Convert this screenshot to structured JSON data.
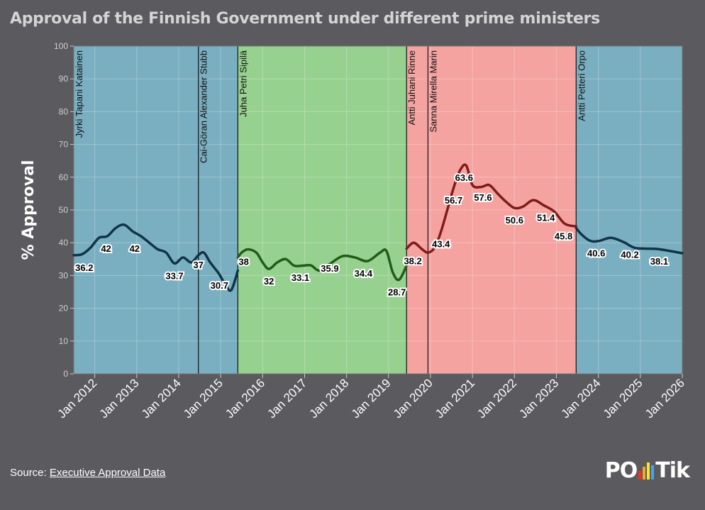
{
  "title": "Approval of the Finnish Government under different prime ministers",
  "footer": {
    "source_label": "Source:",
    "source_link": "Executive Approval Data"
  },
  "logo": {
    "prefix": "PO",
    "suffix": "Tik",
    "bar_colors": [
      "#e8322f",
      "#f5a623",
      "#f8e71c",
      "#3fa9f5"
    ]
  },
  "chart_data": {
    "type": "line",
    "ylabel": "% Approval",
    "ylim": [
      0,
      100
    ],
    "yticks": [
      0,
      10,
      20,
      30,
      40,
      50,
      60,
      70,
      80,
      90,
      100
    ],
    "xlim": [
      2011.5,
      2026
    ],
    "xticks": [
      {
        "v": 2012,
        "label": "Jan 2012"
      },
      {
        "v": 2013,
        "label": "Jan 2013"
      },
      {
        "v": 2014,
        "label": "Jan 2014"
      },
      {
        "v": 2015,
        "label": "Jan 2015"
      },
      {
        "v": 2016,
        "label": "Jan 2016"
      },
      {
        "v": 2017,
        "label": "Jan 2017"
      },
      {
        "v": 2018,
        "label": "Jan 2018"
      },
      {
        "v": 2019,
        "label": "Jan 2019"
      },
      {
        "v": 2020,
        "label": "Jan 2020"
      },
      {
        "v": 2021,
        "label": "Jan 2021"
      },
      {
        "v": 2022,
        "label": "Jan 2022"
      },
      {
        "v": 2023,
        "label": "Jan 2023"
      },
      {
        "v": 2024,
        "label": "Jan 2024"
      },
      {
        "v": 2025,
        "label": "Jan 2025"
      },
      {
        "v": 2026,
        "label": "Jan 2026"
      }
    ],
    "periods": [
      {
        "name": "Jyrki Tapani Katainen",
        "start": 2011.5,
        "end": 2014.47,
        "color": "#7aafc1",
        "line": "#10344a"
      },
      {
        "name": "Cai-Göran Alexander Stubb",
        "start": 2014.47,
        "end": 2015.41,
        "color": "#7aafc1",
        "line": "#10344a"
      },
      {
        "name": "Juha Petri Sipilä",
        "start": 2015.41,
        "end": 2019.43,
        "color": "#97d18f",
        "line": "#235c1a"
      },
      {
        "name": "Antti Juhani Rinne",
        "start": 2019.43,
        "end": 2019.94,
        "color": "#f5a3a1",
        "line": "#7e1c19"
      },
      {
        "name": "Sanna Mirella Marin",
        "start": 2019.94,
        "end": 2023.47,
        "color": "#f5a3a1",
        "line": "#7e1c19"
      },
      {
        "name": "Antti Petteri Orpo",
        "start": 2023.47,
        "end": 2026,
        "color": "#7aafc1",
        "line": "#10344a"
      }
    ],
    "series": [
      {
        "name": "Katainen–Stubb",
        "color": "#10344a",
        "x": [
          2011.5,
          2011.7,
          2011.9,
          2012.1,
          2012.3,
          2012.5,
          2012.7,
          2012.9,
          2013.1,
          2013.3,
          2013.5,
          2013.7,
          2013.9,
          2014.1,
          2014.3,
          2014.47,
          2014.6,
          2014.75,
          2014.95,
          2015.1,
          2015.25,
          2015.41
        ],
        "y": [
          36.2,
          36.5,
          38.5,
          41.5,
          42,
          44.5,
          45.5,
          43.5,
          42,
          40,
          38,
          37,
          33.7,
          35.5,
          34,
          36.2,
          37,
          34,
          30.7,
          27.5,
          25.5,
          31.5
        ]
      },
      {
        "name": "Sipilä",
        "color": "#235c1a",
        "x": [
          2015.41,
          2015.5,
          2015.65,
          2015.85,
          2016.0,
          2016.15,
          2016.35,
          2016.55,
          2016.75,
          2016.95,
          2017.15,
          2017.35,
          2017.6,
          2017.9,
          2018.2,
          2018.5,
          2018.8,
          2018.95,
          2019.1,
          2019.25,
          2019.43
        ],
        "y": [
          35.5,
          37,
          38,
          37,
          34,
          32,
          34,
          35,
          33,
          33,
          33.1,
          31.5,
          33.5,
          35.9,
          35.5,
          34.4,
          37,
          37.5,
          31,
          28.7,
          33
        ]
      },
      {
        "name": "Rinne–Marin",
        "color": "#7e1c19",
        "x": [
          2019.43,
          2019.6,
          2019.8,
          2019.94,
          2020.1,
          2020.25,
          2020.4,
          2020.55,
          2020.7,
          2020.85,
          2021.0,
          2021.2,
          2021.4,
          2021.6,
          2021.8,
          2022.0,
          2022.2,
          2022.45,
          2022.7,
          2022.95,
          2023.2,
          2023.47
        ],
        "y": [
          38.2,
          40,
          38,
          37,
          38.5,
          43.4,
          50,
          56.7,
          62,
          63.6,
          57.6,
          57,
          57.6,
          55,
          52.5,
          50.6,
          51,
          53,
          51.4,
          49.5,
          45.8,
          45
        ]
      },
      {
        "name": "Orpo",
        "color": "#10344a",
        "x": [
          2023.47,
          2023.6,
          2023.8,
          2024.0,
          2024.3,
          2024.6,
          2024.85,
          2025.1,
          2025.4,
          2025.7,
          2026.0
        ],
        "y": [
          44.5,
          42.5,
          40.6,
          40.5,
          41.5,
          40.2,
          38.5,
          38.2,
          38.1,
          37.5,
          36.8
        ]
      }
    ],
    "annotations": [
      {
        "x": 2011.75,
        "y": 36.2,
        "label": "36.2"
      },
      {
        "x": 2012.27,
        "y": 42,
        "label": "42"
      },
      {
        "x": 2012.95,
        "y": 42,
        "label": "42"
      },
      {
        "x": 2013.9,
        "y": 33.7,
        "label": "33.7"
      },
      {
        "x": 2014.47,
        "y": 37,
        "label": "37"
      },
      {
        "x": 2014.97,
        "y": 30.7,
        "label": "30.7"
      },
      {
        "x": 2015.55,
        "y": 38,
        "label": "38"
      },
      {
        "x": 2016.15,
        "y": 32,
        "label": "32"
      },
      {
        "x": 2016.9,
        "y": 33.1,
        "label": "33.1"
      },
      {
        "x": 2017.6,
        "y": 35.9,
        "label": "35.9"
      },
      {
        "x": 2018.4,
        "y": 34.4,
        "label": "34.4"
      },
      {
        "x": 2019.2,
        "y": 28.7,
        "label": "28.7"
      },
      {
        "x": 2019.58,
        "y": 38.2,
        "label": "38.2"
      },
      {
        "x": 2020.25,
        "y": 43.4,
        "label": "43.4"
      },
      {
        "x": 2020.55,
        "y": 56.7,
        "label": "56.7"
      },
      {
        "x": 2020.8,
        "y": 63.6,
        "label": "63.6"
      },
      {
        "x": 2021.25,
        "y": 57.6,
        "label": "57.6"
      },
      {
        "x": 2022.0,
        "y": 50.6,
        "label": "50.6"
      },
      {
        "x": 2022.75,
        "y": 51.4,
        "label": "51.4"
      },
      {
        "x": 2023.17,
        "y": 45.8,
        "label": "45.8"
      },
      {
        "x": 2023.95,
        "y": 40.6,
        "label": "40.6"
      },
      {
        "x": 2024.75,
        "y": 40.2,
        "label": "40.2"
      },
      {
        "x": 2025.45,
        "y": 38.1,
        "label": "38.1"
      }
    ]
  }
}
